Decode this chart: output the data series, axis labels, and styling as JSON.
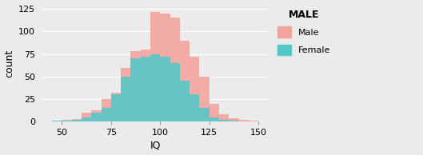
{
  "title": "MALE",
  "xlabel": "IQ",
  "ylabel": "count",
  "xlim": [
    40,
    155
  ],
  "ylim": [
    0,
    130
  ],
  "xticks": [
    50,
    75,
    100,
    125,
    150
  ],
  "yticks": [
    0,
    25,
    50,
    75,
    100,
    125
  ],
  "male_color": "#F4A49E",
  "female_color": "#54C8C8",
  "male_alpha": 0.9,
  "female_alpha": 0.9,
  "background_color": "#EBEBEB",
  "grid_color": "#FFFFFF",
  "bin_width": 5,
  "bin_edges": [
    40,
    45,
    50,
    55,
    60,
    65,
    70,
    75,
    80,
    85,
    90,
    95,
    100,
    105,
    110,
    115,
    120,
    125,
    130,
    135,
    140,
    145,
    150,
    155
  ],
  "male_counts": [
    0,
    1,
    2,
    3,
    10,
    13,
    25,
    32,
    60,
    78,
    80,
    122,
    120,
    115,
    90,
    72,
    50,
    20,
    8,
    4,
    2,
    1,
    0
  ],
  "female_counts": [
    0,
    1,
    1,
    2,
    5,
    10,
    15,
    30,
    50,
    70,
    72,
    75,
    72,
    65,
    45,
    30,
    15,
    5,
    2,
    1,
    0,
    0,
    0
  ]
}
